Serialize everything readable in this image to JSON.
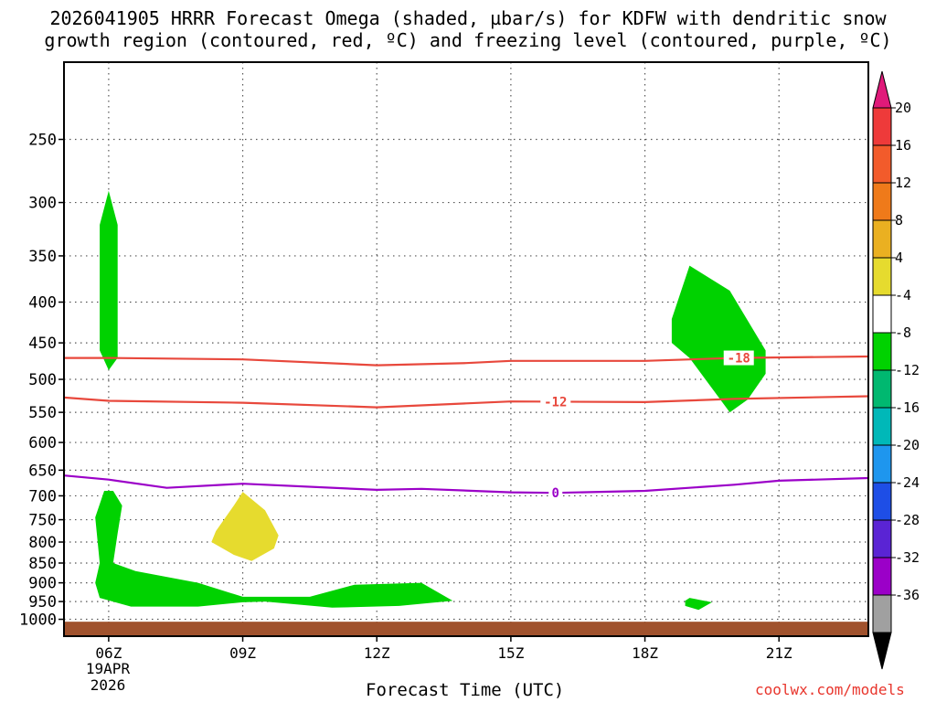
{
  "header": {
    "title_line1": "2026041905 HRRR Forecast Omega (shaded, µbar/s) for KDFW with dendritic snow",
    "title_line2": "growth region (contoured, red, ºC) and freezing level (contoured, purple, ºC)"
  },
  "axes": {
    "xlabel": "Forecast Time (UTC)",
    "date_label": [
      "19APR",
      "2026"
    ],
    "credit": "coolwx.com/models"
  },
  "chart_data": {
    "type": "contour",
    "x_unit": "UTC hour (2026-04-19)",
    "y_unit": "hPa",
    "xlim": [
      5,
      23
    ],
    "ylim": [
      1050,
      200
    ],
    "y_scale": "log",
    "y_ticks": [
      250,
      300,
      350,
      400,
      450,
      500,
      550,
      600,
      650,
      700,
      750,
      800,
      850,
      900,
      950,
      1000
    ],
    "x_ticks": [
      6,
      9,
      12,
      15,
      18,
      21
    ],
    "x_tick_labels": [
      "06Z",
      "09Z",
      "12Z",
      "15Z",
      "18Z",
      "21Z"
    ],
    "grid": true,
    "contours": [
      {
        "label": "-18",
        "color": "#e8483c",
        "label_x": 20.1,
        "points": [
          [
            5,
            470
          ],
          [
            6,
            470
          ],
          [
            9,
            472
          ],
          [
            12,
            480
          ],
          [
            14,
            477
          ],
          [
            15,
            474
          ],
          [
            18,
            474
          ],
          [
            20,
            470
          ],
          [
            23,
            468
          ]
        ]
      },
      {
        "label": "-12",
        "color": "#e8483c",
        "label_x": 16.0,
        "points": [
          [
            5,
            527
          ],
          [
            6,
            532
          ],
          [
            9,
            535
          ],
          [
            12,
            542
          ],
          [
            14,
            536
          ],
          [
            15,
            533
          ],
          [
            18,
            534
          ],
          [
            20,
            529
          ],
          [
            23,
            525
          ]
        ]
      },
      {
        "label": "0",
        "color": "#9b00c8",
        "label_x": 16.0,
        "points": [
          [
            5,
            660
          ],
          [
            6,
            668
          ],
          [
            7.3,
            684
          ],
          [
            9,
            676
          ],
          [
            12,
            688
          ],
          [
            13,
            686
          ],
          [
            15,
            693
          ],
          [
            16,
            694
          ],
          [
            18,
            690
          ],
          [
            20,
            678
          ],
          [
            21,
            670
          ],
          [
            23,
            665
          ]
        ]
      }
    ],
    "shaded_regions": [
      {
        "name": "green",
        "color": "#00d200",
        "points": [
          [
            5.8,
            320
          ],
          [
            6.0,
            290
          ],
          [
            6.2,
            320
          ],
          [
            6.2,
            470
          ],
          [
            6.0,
            487
          ],
          [
            5.8,
            460
          ]
        ]
      },
      {
        "name": "green",
        "color": "#00d200",
        "points": [
          [
            5.7,
            745
          ],
          [
            5.9,
            690
          ],
          [
            6.1,
            690
          ],
          [
            6.3,
            720
          ],
          [
            6.2,
            780
          ],
          [
            6.1,
            850
          ],
          [
            6.6,
            870
          ],
          [
            8.0,
            900
          ],
          [
            9.0,
            937
          ],
          [
            10.5,
            937
          ],
          [
            11.5,
            905
          ],
          [
            13.0,
            900
          ],
          [
            13.7,
            948
          ],
          [
            12.5,
            962
          ],
          [
            11.0,
            967
          ],
          [
            9.5,
            950
          ],
          [
            9.0,
            952
          ],
          [
            8.0,
            964
          ],
          [
            6.5,
            964
          ],
          [
            5.8,
            940
          ],
          [
            5.7,
            900
          ],
          [
            5.8,
            850
          ]
        ]
      },
      {
        "name": "yellow",
        "color": "#e6db2e",
        "points": [
          [
            8.4,
            775
          ],
          [
            8.8,
            720
          ],
          [
            9.0,
            692
          ],
          [
            9.5,
            730
          ],
          [
            9.8,
            785
          ],
          [
            9.7,
            815
          ],
          [
            9.2,
            845
          ],
          [
            8.8,
            830
          ],
          [
            8.3,
            800
          ]
        ]
      },
      {
        "name": "green",
        "color": "#00d200",
        "points": [
          [
            19.0,
            360
          ],
          [
            19.9,
            387
          ],
          [
            20.7,
            460
          ],
          [
            20.7,
            492
          ],
          [
            20.3,
            530
          ],
          [
            19.9,
            550
          ],
          [
            19.0,
            470
          ],
          [
            18.6,
            450
          ],
          [
            18.6,
            420
          ]
        ]
      },
      {
        "name": "green",
        "color": "#00d200",
        "points": [
          [
            18.9,
            948
          ],
          [
            19.0,
            940
          ],
          [
            19.5,
            952
          ],
          [
            19.2,
            973
          ],
          [
            18.9,
            962
          ]
        ]
      }
    ],
    "ground": {
      "color": "#a0522d",
      "from_pressure": 1007
    }
  },
  "colorbar": {
    "levels": [
      20,
      16,
      12,
      8,
      4,
      -4,
      -8,
      -12,
      -16,
      -20,
      -24,
      -28,
      -32,
      -36
    ],
    "colors": [
      "#ee3a3a",
      "#f25b2b",
      "#ef7a1a",
      "#eab021",
      "#e6db2e",
      "#ffffff",
      "#00d200",
      "#00b870",
      "#00b8b8",
      "#1e96ee",
      "#1e4ee6",
      "#5a24d4",
      "#9b00c8",
      "#a0a0a0"
    ],
    "top_arrow_color": "#e01a7a",
    "bottom_arrow_color": "#000000"
  }
}
